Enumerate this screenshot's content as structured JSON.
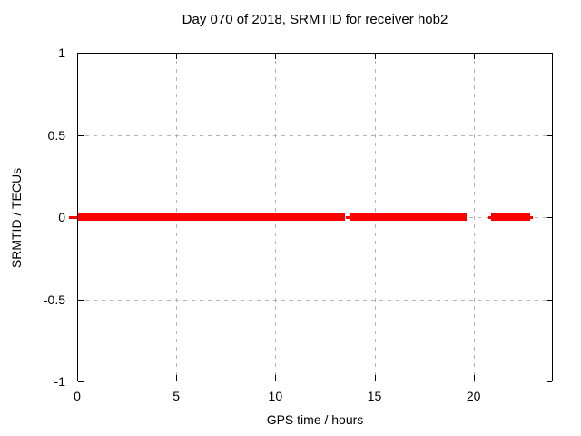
{
  "chart_data": {
    "type": "scatter",
    "title": "Day 070 of 2018, SRMTID for receiver hob2",
    "xlabel": "GPS time / hours",
    "ylabel": "SRMTID / TECUs",
    "xlim": [
      0,
      24
    ],
    "ylim": [
      -1,
      1
    ],
    "xticks": {
      "values": [
        0,
        5,
        10,
        15,
        20
      ],
      "labels": [
        "0",
        "5",
        "10",
        "15",
        "20"
      ]
    },
    "yticks": {
      "values": [
        1,
        0.5,
        0,
        -0.5,
        -1
      ],
      "labels": [
        "1",
        "0.5",
        "0",
        "-0.5",
        "-1"
      ]
    },
    "grid": true,
    "legend": "none",
    "series": [
      {
        "name": "SRMTID",
        "color": "#ff0000",
        "constant_value": 0,
        "thick_segments_hours": [
          [
            0.0,
            13.51
          ],
          [
            13.74,
            19.65
          ],
          [
            20.89,
            22.86
          ]
        ],
        "thin_segments_hours": [
          [
            -0.41,
            0.0
          ],
          [
            13.56,
            13.74
          ],
          [
            20.75,
            20.89
          ],
          [
            22.86,
            23.0
          ]
        ]
      }
    ],
    "grid_color": "#b4b4b4",
    "border_color": "#000000",
    "text_color": "#000000"
  }
}
